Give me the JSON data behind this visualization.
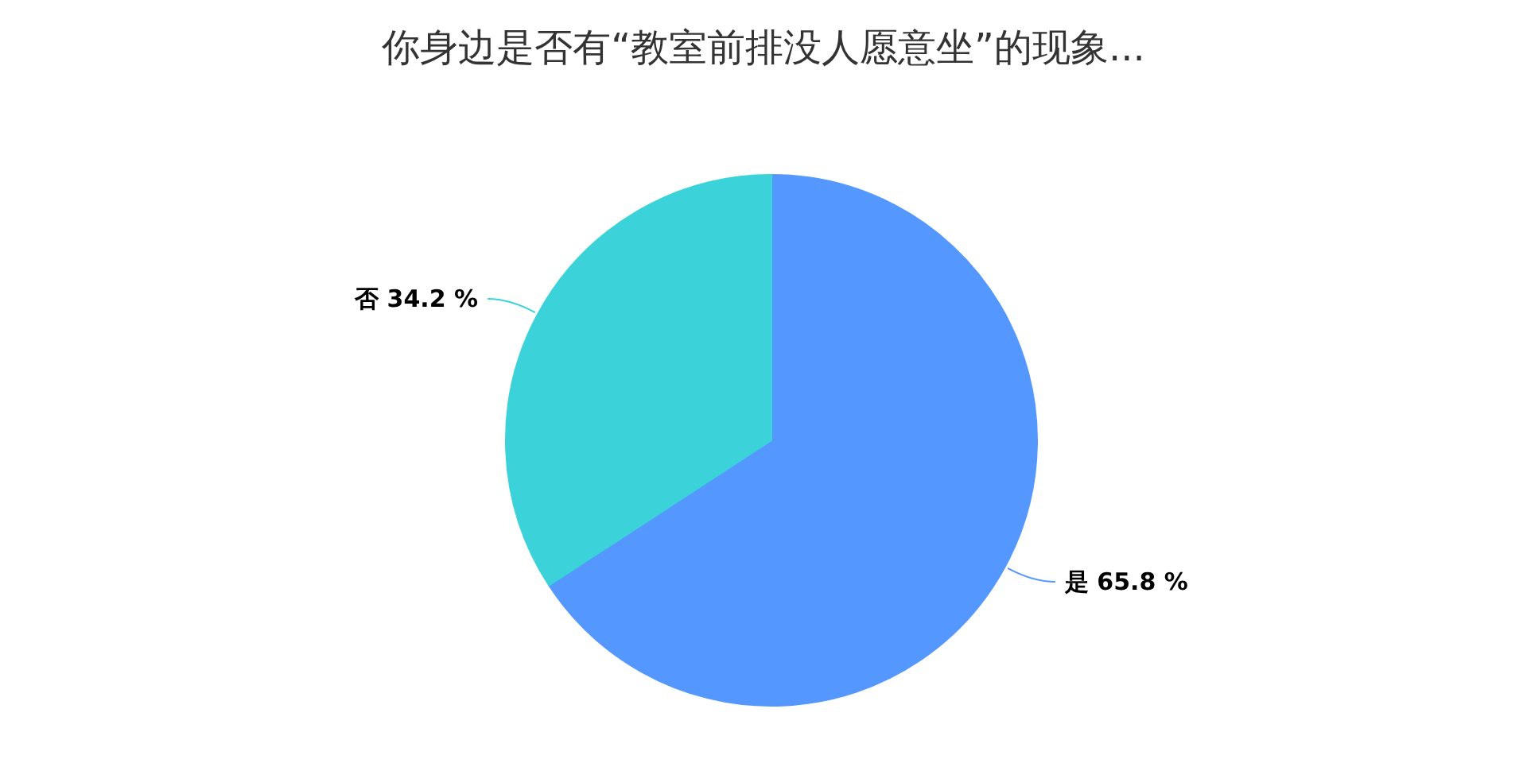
{
  "chart_data": {
    "type": "pie",
    "title": "你身边是否有“教室前排没人愿意坐”的现象...",
    "categories": [
      "是",
      "否"
    ],
    "values": [
      65.8,
      34.2
    ],
    "colors": [
      "#5498ff",
      "#3bd3d9"
    ],
    "value_labels": [
      "65.8 %",
      "34.2 %"
    ],
    "legend": false
  }
}
